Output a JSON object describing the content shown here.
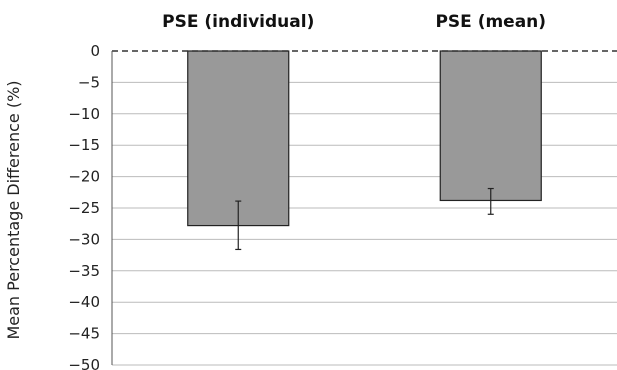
{
  "chart_data": {
    "type": "bar",
    "categories": [
      "PSE (individual)",
      "PSE (mean)"
    ],
    "values": [
      -27.8,
      -23.8
    ],
    "error_low": [
      -31.6,
      -26.0
    ],
    "error_high": [
      -23.9,
      -21.9
    ],
    "ylabel": "Mean Percentage Difference (%)",
    "ylim": [
      -50,
      0
    ],
    "yticks": [
      0,
      -5,
      -10,
      -15,
      -20,
      -25,
      -30,
      -35,
      -40,
      -45,
      -50
    ],
    "ytick_labels": [
      "0",
      "−5",
      "−10",
      "−15",
      "−20",
      "−25",
      "−30",
      "−35",
      "−40",
      "−45",
      "−50"
    ],
    "grid": true,
    "zero_line": "dashed",
    "category_labels_position": "top",
    "bar_color": "#999999",
    "bar_edge_color": "#222222",
    "grid_color": "#bbbbbb"
  }
}
